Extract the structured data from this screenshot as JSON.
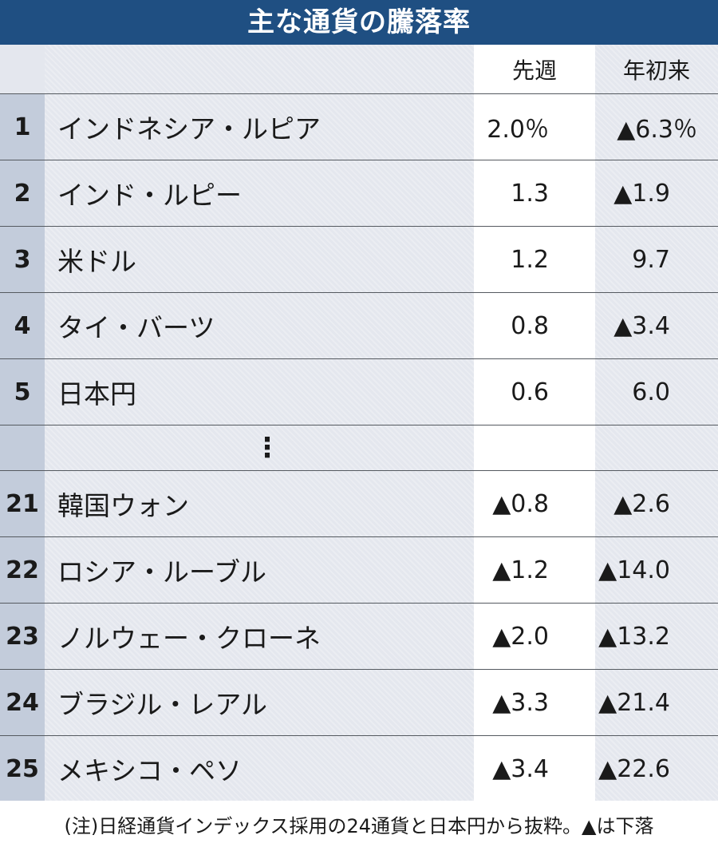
{
  "title": "主な通貨の騰落率",
  "columns": {
    "week": "先週",
    "ytd": "年初来"
  },
  "rows": [
    {
      "rank": "1",
      "name": "インドネシア・ルピア",
      "week": "2.0％",
      "ytd": "▲6.3％"
    },
    {
      "rank": "2",
      "name": "インド・ルピー",
      "week": "1.3",
      "ytd": "▲1.9"
    },
    {
      "rank": "3",
      "name": "米ドル",
      "week": "1.2",
      "ytd": "9.7"
    },
    {
      "rank": "4",
      "name": "タイ・バーツ",
      "week": "0.8",
      "ytd": "▲3.4"
    },
    {
      "rank": "5",
      "name": "日本円",
      "week": "0.6",
      "ytd": "6.0"
    }
  ],
  "ellipsis": "⋮",
  "rows_bottom": [
    {
      "rank": "21",
      "name": "韓国ウォン",
      "week": "▲0.8",
      "ytd": "▲2.6"
    },
    {
      "rank": "22",
      "name": "ロシア・ルーブル",
      "week": "▲1.2",
      "ytd": "▲14.0"
    },
    {
      "rank": "23",
      "name": "ノルウェー・クローネ",
      "week": "▲2.0",
      "ytd": "▲13.2"
    },
    {
      "rank": "24",
      "name": "ブラジル・レアル",
      "week": "▲3.3",
      "ytd": "▲21.4"
    },
    {
      "rank": "25",
      "name": "メキシコ・ペソ",
      "week": "▲3.4",
      "ytd": "▲22.6"
    }
  ],
  "note": "(注)日経通貨インデックス採用の24通貨と日本円から抜粋。▲は下落",
  "colors": {
    "title_bg": "#1f4f82",
    "row_bg": "#e4e7ee",
    "rank_bg": "#c3ccdb",
    "week_bg": "#ffffff"
  }
}
